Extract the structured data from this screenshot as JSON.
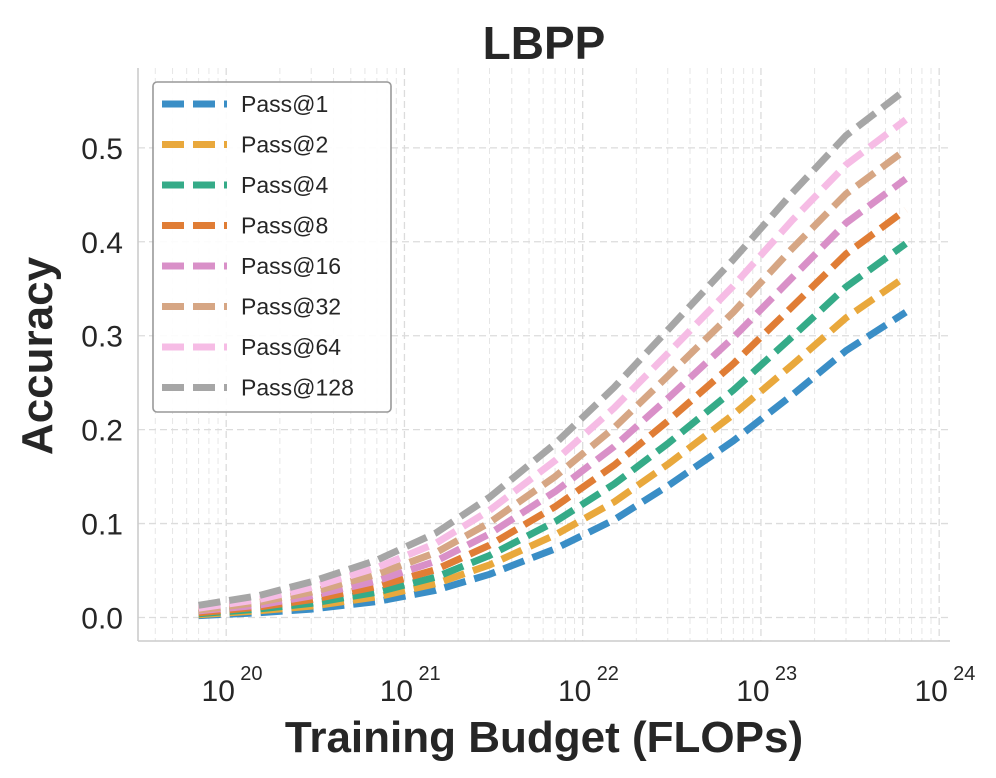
{
  "chart_data": {
    "type": "line",
    "title": "LBPP",
    "xlabel": "Training Budget (FLOPs)",
    "ylabel": "Accuracy",
    "xscale": "log",
    "xlim": [
      3.2e+19,
      1.15e+24
    ],
    "ylim": [
      -0.025,
      0.585
    ],
    "xticks": [
      {
        "value": 1e+20,
        "base": "10",
        "exp": "20"
      },
      {
        "value": 1e+21,
        "base": "10",
        "exp": "21"
      },
      {
        "value": 1e+22,
        "base": "10",
        "exp": "22"
      },
      {
        "value": 1e+23,
        "base": "10",
        "exp": "23"
      },
      {
        "value": 1e+24,
        "base": "10",
        "exp": "24"
      }
    ],
    "yticks": [
      {
        "value": 0.0,
        "label": "0.0"
      },
      {
        "value": 0.1,
        "label": "0.1"
      },
      {
        "value": 0.2,
        "label": "0.2"
      },
      {
        "value": 0.3,
        "label": "0.3"
      },
      {
        "value": 0.4,
        "label": "0.4"
      },
      {
        "value": 0.5,
        "label": "0.5"
      }
    ],
    "grid": true,
    "legend_position": "top-left",
    "x": [
      7e+19,
      1.5e+20,
      3e+20,
      7e+20,
      1.5e+21,
      3e+21,
      7e+21,
      1.5e+22,
      3e+22,
      7e+22,
      1.5e+23,
      3e+23,
      6.5e+23
    ],
    "series": [
      {
        "name": "Pass@1",
        "color": "#3a8ec6",
        "values": [
          0.002,
          0.005,
          0.009,
          0.017,
          0.029,
          0.046,
          0.073,
          0.104,
          0.14,
          0.188,
          0.237,
          0.284,
          0.325
        ]
      },
      {
        "name": "Pass@2",
        "color": "#e9a83c",
        "values": [
          0.003,
          0.007,
          0.012,
          0.022,
          0.036,
          0.056,
          0.088,
          0.123,
          0.163,
          0.216,
          0.269,
          0.319,
          0.363
        ]
      },
      {
        "name": "Pass@4",
        "color": "#35ab88",
        "values": [
          0.004,
          0.009,
          0.015,
          0.027,
          0.043,
          0.066,
          0.102,
          0.142,
          0.185,
          0.242,
          0.299,
          0.352,
          0.398
        ]
      },
      {
        "name": "Pass@8",
        "color": "#e07d35",
        "values": [
          0.005,
          0.011,
          0.019,
          0.033,
          0.051,
          0.077,
          0.118,
          0.162,
          0.209,
          0.27,
          0.331,
          0.387,
          0.434
        ]
      },
      {
        "name": "Pass@16",
        "color": "#d990c8",
        "values": [
          0.007,
          0.013,
          0.023,
          0.039,
          0.06,
          0.089,
          0.134,
          0.182,
          0.233,
          0.298,
          0.362,
          0.42,
          0.467
        ]
      },
      {
        "name": "Pass@32",
        "color": "#d6a684",
        "values": [
          0.008,
          0.016,
          0.027,
          0.046,
          0.069,
          0.101,
          0.15,
          0.202,
          0.257,
          0.325,
          0.393,
          0.451,
          0.498
        ]
      },
      {
        "name": "Pass@64",
        "color": "#f6bce5",
        "values": [
          0.01,
          0.019,
          0.032,
          0.053,
          0.079,
          0.114,
          0.167,
          0.223,
          0.281,
          0.353,
          0.423,
          0.482,
          0.53
        ]
      },
      {
        "name": "Pass@128",
        "color": "#a6a6a6",
        "values": [
          0.013,
          0.023,
          0.038,
          0.061,
          0.09,
          0.128,
          0.185,
          0.245,
          0.306,
          0.381,
          0.452,
          0.513,
          0.562
        ]
      }
    ]
  }
}
